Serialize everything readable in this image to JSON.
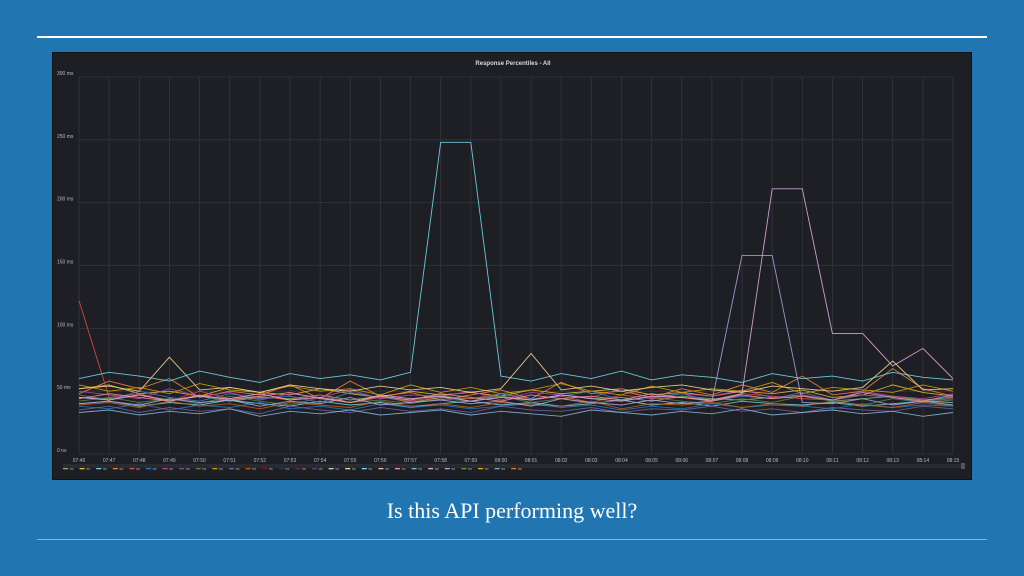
{
  "slide": {
    "caption": "Is this API performing well?",
    "background_color": "#2175b0"
  },
  "chart_data": {
    "type": "line",
    "title": "Response Percentiles - All",
    "xlabel": "",
    "ylabel": "",
    "y_tick_labels": [
      "0 ns",
      "50 ms",
      "100 ms",
      "150 ms",
      "200 ms",
      "250 ms",
      "300 ms"
    ],
    "y_ticks": [
      0,
      50,
      100,
      150,
      200,
      250,
      300
    ],
    "ylim": [
      0,
      300
    ],
    "x_tick_labels": [
      "07:46",
      "07:47",
      "07:48",
      "07:49",
      "07:50",
      "07:51",
      "07:52",
      "07:53",
      "07:54",
      "07:55",
      "07:56",
      "07:57",
      "07:58",
      "07:59",
      "08:00",
      "08:01",
      "08:02",
      "08:03",
      "08:04",
      "08:05",
      "08:06",
      "08:07",
      "08:08",
      "08:09",
      "08:10",
      "08:11",
      "08:12",
      "08:13",
      "08:14",
      "08:15"
    ],
    "grid": true,
    "legend_position": "bottom",
    "legend_label": "95",
    "legend_colors": [
      "#7eb26d",
      "#eab839",
      "#6ed0e0",
      "#ef843c",
      "#e24d42",
      "#1f78c1",
      "#ba43a9",
      "#705da0",
      "#508642",
      "#cca300",
      "#447ebc",
      "#c15c17",
      "#890f02",
      "#0a437c",
      "#6d1f62",
      "#584477",
      "#b7dbab",
      "#f4d598",
      "#70dbed",
      "#f9ba8f",
      "#f29191",
      "#82b5d8",
      "#e5a8e2",
      "#aea2e0",
      "#629e51",
      "#e5ac0e",
      "#64b0c8",
      "#e0752d"
    ],
    "series": [
      {
        "color": "#7eb26d",
        "values": [
          45,
          44,
          47,
          43,
          46,
          42,
          45,
          44,
          47,
          43,
          46,
          41,
          45,
          44,
          46,
          43,
          47,
          44,
          45,
          42,
          46,
          44,
          43,
          45,
          47,
          42,
          44,
          46,
          43,
          45
        ]
      },
      {
        "color": "#eab839",
        "values": [
          52,
          55,
          48,
          50,
          46,
          53,
          49,
          47,
          52,
          48,
          45,
          50,
          47,
          49,
          46,
          51,
          48,
          50,
          52,
          47,
          49,
          46,
          50,
          48,
          51,
          45,
          47,
          55,
          49,
          46
        ]
      },
      {
        "color": "#6ed0e0",
        "values": [
          40,
          42,
          38,
          41,
          39,
          43,
          40,
          38,
          42,
          39,
          41,
          37,
          40,
          42,
          39,
          41,
          38,
          40,
          43,
          39,
          41,
          38,
          42,
          40,
          39,
          41,
          38,
          40,
          42,
          39
        ]
      },
      {
        "color": "#ef843c",
        "values": [
          48,
          58,
          52,
          60,
          45,
          50,
          47,
          55,
          44,
          58,
          46,
          49,
          43,
          47,
          51,
          44,
          57,
          48,
          50,
          45,
          52,
          47,
          55,
          49,
          62,
          47,
          50,
          68,
          52,
          46
        ]
      },
      {
        "color": "#e24d42",
        "values": [
          122,
          45,
          48,
          42,
          50,
          44,
          46,
          43,
          47,
          41,
          45,
          42,
          46,
          44,
          48,
          43,
          46,
          41,
          47,
          44,
          45,
          42,
          48,
          46,
          44,
          43,
          47,
          45,
          42,
          44
        ]
      },
      {
        "color": "#1f78c1",
        "values": [
          38,
          36,
          40,
          35,
          39,
          37,
          41,
          36,
          38,
          35,
          40,
          37,
          39,
          36,
          38,
          40,
          37,
          39,
          35,
          38,
          36,
          40,
          37,
          39,
          38,
          36,
          40,
          37,
          39,
          38
        ]
      },
      {
        "color": "#ba43a9",
        "values": [
          50,
          47,
          44,
          52,
          46,
          49,
          43,
          48,
          45,
          51,
          44,
          47,
          46,
          50,
          43,
          49,
          47,
          45,
          52,
          44,
          48,
          46,
          51,
          45,
          47,
          43,
          50,
          46,
          44,
          48
        ]
      },
      {
        "color": "#705da0",
        "values": [
          35,
          38,
          33,
          37,
          34,
          36,
          32,
          38,
          35,
          33,
          37,
          34,
          36,
          33,
          38,
          35,
          34,
          37,
          33,
          36,
          35,
          38,
          34,
          36,
          33,
          37,
          35,
          34,
          38,
          36
        ]
      },
      {
        "color": "#508642",
        "values": [
          42,
          45,
          41,
          44,
          40,
          46,
          42,
          39,
          45,
          41,
          43,
          40,
          44,
          42,
          46,
          41,
          44,
          40,
          43,
          45,
          42,
          40,
          44,
          41,
          46,
          42,
          39,
          44,
          41,
          43
        ]
      },
      {
        "color": "#cca300",
        "values": [
          55,
          50,
          53,
          48,
          56,
          51,
          49,
          54,
          50,
          52,
          47,
          55,
          49,
          53,
          48,
          51,
          56,
          50,
          47,
          54,
          49,
          52,
          50,
          57,
          48,
          53,
          51,
          49,
          55,
          50
        ]
      },
      {
        "color": "#447ebc",
        "values": [
          47,
          43,
          50,
          45,
          42,
          48,
          44,
          46,
          41,
          49,
          45,
          43,
          47,
          42,
          48,
          44,
          46,
          50,
          43,
          45,
          48,
          42,
          46,
          44,
          49,
          43,
          47,
          45,
          41,
          46
        ]
      },
      {
        "color": "#c15c17",
        "values": [
          39,
          41,
          37,
          42,
          38,
          40,
          36,
          41,
          39,
          37,
          42,
          38,
          40,
          37,
          41,
          39,
          38,
          42,
          36,
          40,
          39,
          41,
          37,
          40,
          38,
          42,
          39,
          37,
          41,
          38
        ]
      },
      {
        "color": "#70dbed",
        "values": [
          60,
          65,
          62,
          58,
          66,
          61,
          57,
          64,
          60,
          63,
          59,
          65,
          248,
          248,
          62,
          58,
          64,
          60,
          66,
          59,
          63,
          61,
          57,
          64,
          60,
          62,
          58,
          65,
          61,
          59
        ]
      },
      {
        "color": "#e5a8e2",
        "values": [
          45,
          43,
          47,
          42,
          46,
          44,
          48,
          43,
          45,
          41,
          47,
          44,
          46,
          42,
          45,
          43,
          47,
          44,
          42,
          46,
          45,
          43,
          48,
          211,
          211,
          96,
          96,
          70,
          84,
          60
        ]
      },
      {
        "color": "#aea2e0",
        "values": [
          40,
          42,
          39,
          44,
          41,
          43,
          38,
          42,
          40,
          45,
          39,
          41,
          43,
          40,
          42,
          38,
          44,
          41,
          39,
          43,
          40,
          42,
          158,
          158,
          41,
          40,
          44,
          39,
          42,
          41
        ]
      },
      {
        "color": "#f4d598",
        "values": [
          52,
          54,
          50,
          77,
          51,
          53,
          49,
          55,
          52,
          50,
          54,
          51,
          53,
          49,
          52,
          80,
          51,
          54,
          50,
          53,
          55,
          51,
          49,
          54,
          52,
          50,
          53,
          74,
          51,
          52
        ]
      },
      {
        "color": "#82b5d8",
        "values": [
          33,
          35,
          31,
          34,
          32,
          36,
          30,
          34,
          32,
          35,
          31,
          33,
          35,
          31,
          34,
          32,
          30,
          35,
          33,
          31,
          34,
          32,
          36,
          31,
          33,
          35,
          32,
          34,
          30,
          33
        ]
      },
      {
        "color": "#f29191",
        "values": [
          44,
          48,
          45,
          42,
          47,
          43,
          46,
          49,
          44,
          41,
          46,
          43,
          48,
          45,
          42,
          47,
          44,
          46,
          43,
          48,
          45,
          42,
          47,
          44,
          46,
          43,
          49,
          45,
          42,
          47
        ]
      }
    ]
  }
}
